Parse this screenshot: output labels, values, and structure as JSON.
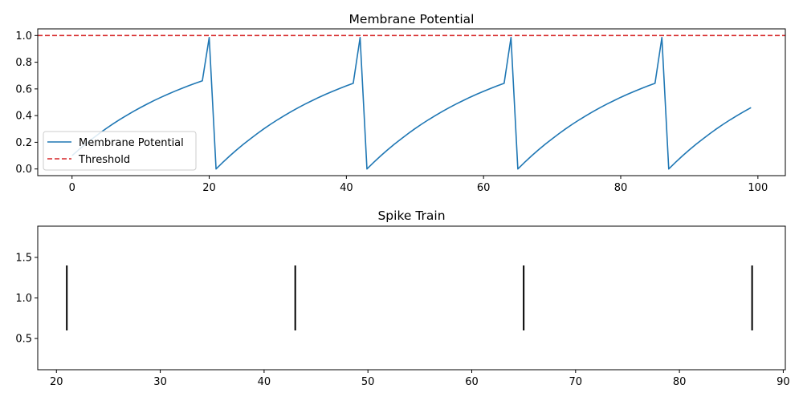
{
  "chart_data": [
    {
      "type": "line",
      "title": "Membrane Potential",
      "xlabel": "",
      "ylabel": "",
      "xlim": [
        -5,
        104
      ],
      "ylim": [
        -0.05,
        1.05
      ],
      "xticks": [
        0,
        20,
        40,
        60,
        80,
        100
      ],
      "yticks": [
        0.0,
        0.2,
        0.4,
        0.6,
        0.8,
        1.0
      ],
      "xtick_labels": [
        "0",
        "20",
        "40",
        "60",
        "80",
        "100"
      ],
      "ytick_labels": [
        "0.0",
        "0.2",
        "0.4",
        "0.6",
        "0.8",
        "1.0"
      ],
      "grid": false,
      "legend_position": "lower-left",
      "series": [
        {
          "name": "Membrane Potential",
          "color": "#1f77b4",
          "style": "solid",
          "x": [
            0,
            1,
            2,
            3,
            4,
            5,
            6,
            7,
            8,
            9,
            10,
            11,
            12,
            13,
            14,
            15,
            16,
            17,
            18,
            19,
            20,
            21,
            22,
            23,
            24,
            25,
            26,
            27,
            28,
            29,
            30,
            31,
            32,
            33,
            34,
            35,
            36,
            37,
            38,
            39,
            40,
            41,
            42,
            43,
            44,
            45,
            46,
            47,
            48,
            49,
            50,
            51,
            52,
            53,
            54,
            55,
            56,
            57,
            58,
            59,
            60,
            61,
            62,
            63,
            64,
            65,
            66,
            67,
            68,
            69,
            70,
            71,
            72,
            73,
            74,
            75,
            76,
            77,
            78,
            79,
            80,
            81,
            82,
            83,
            84,
            85,
            86,
            87,
            88,
            89,
            90,
            91,
            92,
            93,
            94,
            95,
            96,
            97,
            98,
            99
          ],
          "y": [
            0.1,
            0.145,
            0.188,
            0.228,
            0.267,
            0.304,
            0.339,
            0.372,
            0.403,
            0.433,
            0.461,
            0.488,
            0.514,
            0.538,
            0.561,
            0.583,
            0.604,
            0.624,
            0.643,
            0.661,
            0.985,
            0.0,
            0.05,
            0.098,
            0.143,
            0.186,
            0.226,
            0.265,
            0.302,
            0.337,
            0.37,
            0.401,
            0.431,
            0.46,
            0.487,
            0.512,
            0.537,
            0.56,
            0.582,
            0.603,
            0.623,
            0.642,
            0.985,
            0.0,
            0.05,
            0.098,
            0.143,
            0.186,
            0.226,
            0.265,
            0.302,
            0.337,
            0.37,
            0.401,
            0.431,
            0.46,
            0.487,
            0.512,
            0.537,
            0.56,
            0.582,
            0.603,
            0.623,
            0.642,
            0.985,
            0.0,
            0.05,
            0.098,
            0.143,
            0.186,
            0.226,
            0.265,
            0.302,
            0.337,
            0.37,
            0.401,
            0.431,
            0.46,
            0.487,
            0.512,
            0.537,
            0.56,
            0.582,
            0.603,
            0.623,
            0.642,
            0.985,
            0.0,
            0.05,
            0.098,
            0.143,
            0.186,
            0.226,
            0.265,
            0.302,
            0.337,
            0.37,
            0.401,
            0.431,
            0.46
          ]
        },
        {
          "name": "Threshold",
          "color": "#d62728",
          "style": "dashed",
          "hline": 1.0
        }
      ]
    },
    {
      "type": "eventplot",
      "title": "Spike Train",
      "xlabel": "",
      "ylabel": "",
      "xlim": [
        18.2,
        90.2
      ],
      "ylim": [
        0.115,
        1.885
      ],
      "xticks": [
        20,
        30,
        40,
        50,
        60,
        70,
        80,
        90
      ],
      "yticks": [
        0.5,
        1.0,
        1.5
      ],
      "xtick_labels": [
        "20",
        "30",
        "40",
        "50",
        "60",
        "70",
        "80",
        "90"
      ],
      "ytick_labels": [
        "0.5",
        "1.0",
        "1.5"
      ],
      "grid": false,
      "color": "#000000",
      "events": [
        21,
        43,
        65,
        87
      ],
      "line_offset": 1.0,
      "line_length": 0.8
    }
  ]
}
